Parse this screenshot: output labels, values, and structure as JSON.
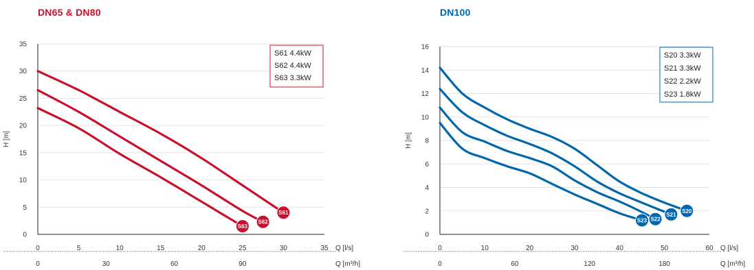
{
  "chart_data": [
    {
      "type": "line",
      "title": "DN65 & DN80",
      "color": "#c8102e",
      "ylabel": "H [m]",
      "xlabel": "Q [l/s]",
      "xlabel2": "Q [m³/h]",
      "xlim": [
        0,
        35
      ],
      "ylim": [
        0,
        35
      ],
      "xticks": [
        0,
        5,
        10,
        15,
        20,
        25,
        30,
        35
      ],
      "yticks": [
        0,
        5,
        10,
        15,
        20,
        25,
        30,
        35
      ],
      "x2ticks": [
        0,
        30,
        60,
        90
      ],
      "x2_per_x": 3.6,
      "grid": "horizontal",
      "legend_position": "top-right",
      "series": [
        {
          "name": "S61 4.4kW",
          "label": "S61",
          "x": [
            0,
            5,
            10,
            15,
            20,
            25,
            30
          ],
          "y": [
            30,
            26.5,
            22.5,
            18.5,
            14,
            9,
            4
          ]
        },
        {
          "name": "S62 4.4kW",
          "label": "S62",
          "x": [
            0,
            5,
            10,
            15,
            20,
            25,
            27.5
          ],
          "y": [
            26.5,
            22.5,
            18,
            13.5,
            9,
            4.3,
            2.3
          ]
        },
        {
          "name": "S63 3.3kW",
          "label": "S63",
          "x": [
            0,
            5,
            10,
            15,
            20,
            25
          ],
          "y": [
            23.2,
            19.5,
            14.8,
            10.5,
            6,
            1.5
          ]
        }
      ]
    },
    {
      "type": "line",
      "title": "DN100",
      "color": "#0066ae",
      "ylabel": "H [m]",
      "xlabel": "Q [l/s]",
      "xlabel2": "Q [m³/h]",
      "xlim": [
        0,
        60
      ],
      "ylim": [
        0,
        16
      ],
      "xticks": [
        0,
        10,
        20,
        30,
        40,
        50,
        60
      ],
      "yticks": [
        0,
        2,
        4,
        6,
        8,
        10,
        12,
        14,
        16
      ],
      "x2ticks": [
        0,
        60,
        120,
        180
      ],
      "x2_per_x": 3.6,
      "grid": "horizontal",
      "legend_position": "top-right",
      "series": [
        {
          "name": "S20 3.3kW",
          "label": "S20",
          "x": [
            0,
            5,
            10,
            15,
            20,
            25,
            30,
            35,
            40,
            45,
            50,
            55
          ],
          "y": [
            14.2,
            12,
            10.8,
            9.8,
            9,
            8.3,
            7.3,
            5.9,
            4.5,
            3.5,
            2.7,
            2
          ]
        },
        {
          "name": "S21 3.3kW",
          "label": "S21",
          "x": [
            0,
            5,
            10,
            15,
            20,
            25,
            30,
            35,
            40,
            45,
            51.5
          ],
          "y": [
            12.4,
            10.4,
            9.3,
            8.4,
            7.7,
            6.9,
            5.8,
            4.5,
            3.5,
            2.7,
            1.7
          ]
        },
        {
          "name": "S22 2.2kW",
          "label": "S22",
          "x": [
            0,
            5,
            10,
            15,
            20,
            25,
            30,
            35,
            40,
            45,
            48
          ],
          "y": [
            10.8,
            8.7,
            7.9,
            7.1,
            6.5,
            5.8,
            4.6,
            3.6,
            2.8,
            1.9,
            1.3
          ]
        },
        {
          "name": "S23 1.8kW",
          "label": "S23",
          "x": [
            0,
            5,
            10,
            15,
            20,
            25,
            30,
            35,
            40,
            45
          ],
          "y": [
            9.5,
            7.3,
            6.5,
            5.8,
            5.2,
            4.3,
            3.4,
            2.6,
            1.8,
            1.2
          ]
        }
      ]
    }
  ]
}
